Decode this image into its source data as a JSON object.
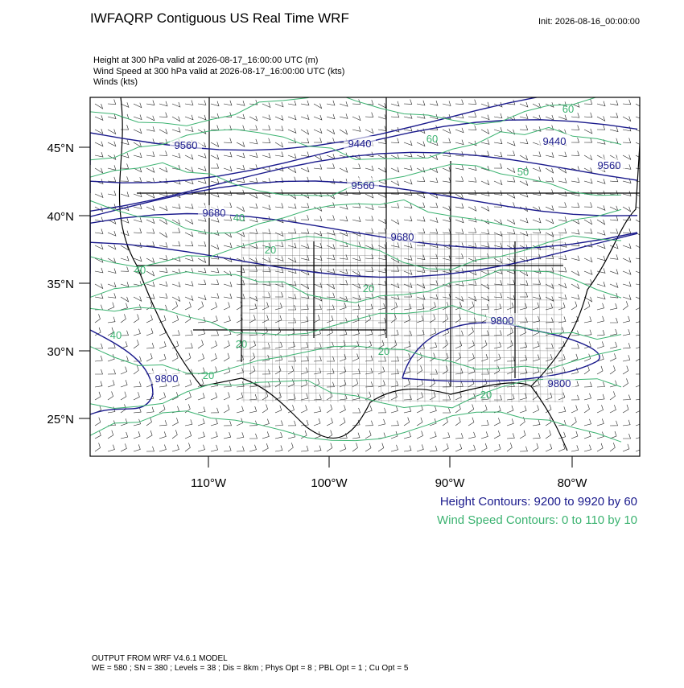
{
  "title": "IWFAQRP Contiguous US Real Time WRF",
  "init": "Init: 2026-08-16_00:00:00",
  "fields": [
    "Height at 300 hPa valid at 2026-08-17_16:00:00 UTC   (m)",
    "Wind Speed at 300 hPa valid at 2026-08-17_16:00:00 UTC   (kts)",
    "Winds   (kts)"
  ],
  "lat_labels": [
    "45°N",
    "40°N",
    "35°N",
    "30°N",
    "25°N"
  ],
  "lon_labels": [
    "110°W",
    "100°W",
    "90°W",
    "80°W"
  ],
  "height_contour_labels": [
    "9560",
    "9440",
    "9440",
    "9560",
    "9680",
    "9680",
    "9560",
    "9800",
    "9800",
    "9800"
  ],
  "wind_contour_labels": [
    "60",
    "60",
    "50",
    "40",
    "20",
    "20",
    "40",
    "40",
    "20",
    "20",
    "20",
    "20"
  ],
  "legend": [
    "Height Contours: 9200 to 9920 by 60",
    "Wind Speed Contours: 0 to 110 by 10"
  ],
  "footer": [
    "OUTPUT FROM WRF V4.6.1 MODEL",
    "WE = 580 ; SN = 380 ; Levels = 38 ; Dis = 8km ; Phys Opt = 8 ; PBL Opt = 1 ; Cu Opt = 5"
  ]
}
